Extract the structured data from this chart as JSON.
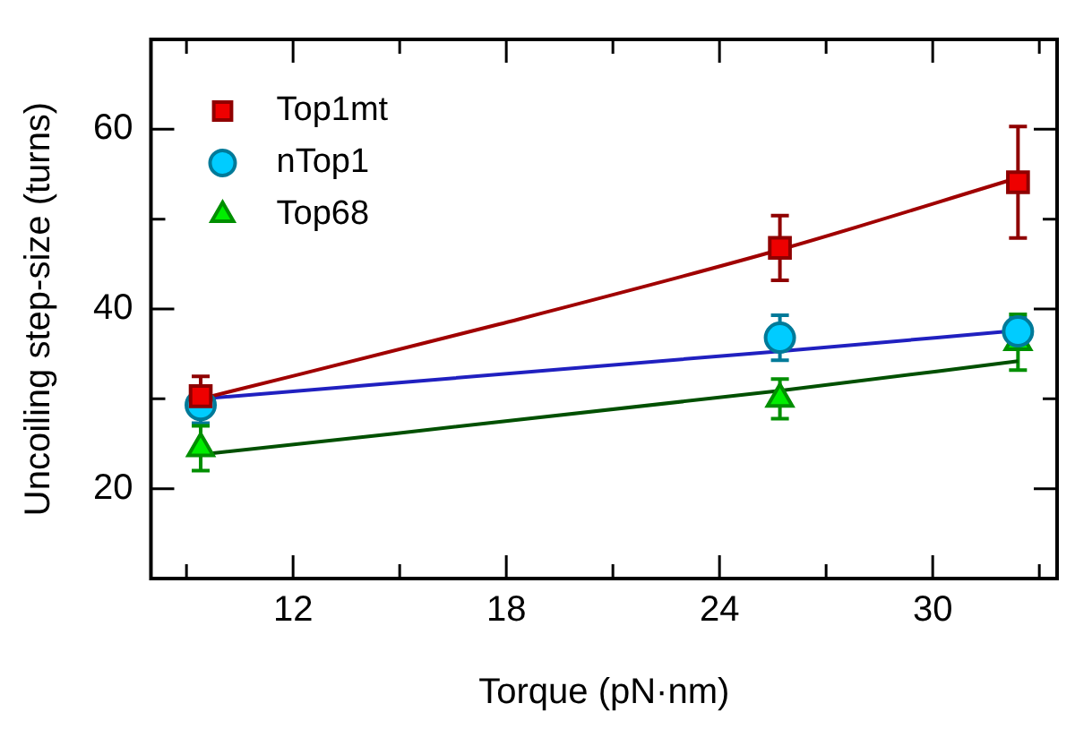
{
  "chart_data": {
    "type": "scatter",
    "xlabel": "Torque (pN·nm)",
    "ylabel": "Uncoiling step-size (turns)",
    "xlim": [
      8,
      33.5
    ],
    "ylim": [
      10,
      70
    ],
    "xticks": [
      {
        "value": 9,
        "label": null
      },
      12,
      {
        "value": 15,
        "label": null
      },
      18,
      {
        "value": 21,
        "label": null
      },
      24,
      {
        "value": 27,
        "label": null
      },
      30,
      {
        "value": 33,
        "label": null
      }
    ],
    "yticks": [
      20,
      {
        "value": 30,
        "label": null
      },
      40,
      {
        "value": 50,
        "label": null
      },
      60
    ],
    "grid": false,
    "legend": "top left",
    "series": [
      {
        "name": "Top1mt",
        "marker": "square",
        "color": "#ee0000",
        "x": [
          9.4,
          25.7,
          32.4
        ],
        "values": [
          30.3,
          46.8,
          54.1
        ],
        "errors": [
          2.2,
          3.6,
          6.2
        ]
      },
      {
        "name": "nTop1",
        "marker": "circle",
        "color": "#00ccff",
        "x": [
          9.4,
          25.7,
          32.4
        ],
        "values": [
          29.3,
          36.8,
          37.5
        ],
        "errors": [
          2,
          2.5,
          1.5
        ]
      },
      {
        "name": "Top68",
        "marker": "triangle",
        "color": "#00ee00",
        "x": [
          9.4,
          25.7,
          32.4
        ],
        "values": [
          24.5,
          30,
          36.3
        ],
        "errors": [
          2.5,
          2.2,
          3.1
        ]
      },
      {
        "type": "line",
        "marker": "none",
        "color": "#a00000",
        "x": [
          9.4,
          17.8,
          25.7,
          32.4
        ],
        "values": [
          30,
          38.3,
          46.6,
          54.6
        ]
      },
      {
        "type": "line",
        "marker": "none",
        "color": "#2020c0",
        "x": [
          9.4,
          25.7,
          32.4
        ],
        "values": [
          30,
          35.3,
          37.6
        ]
      },
      {
        "type": "line",
        "marker": "none",
        "color": "#005000",
        "x": [
          9.4,
          25.7,
          32.4
        ],
        "values": [
          23.8,
          30.9,
          34.2
        ]
      }
    ]
  }
}
